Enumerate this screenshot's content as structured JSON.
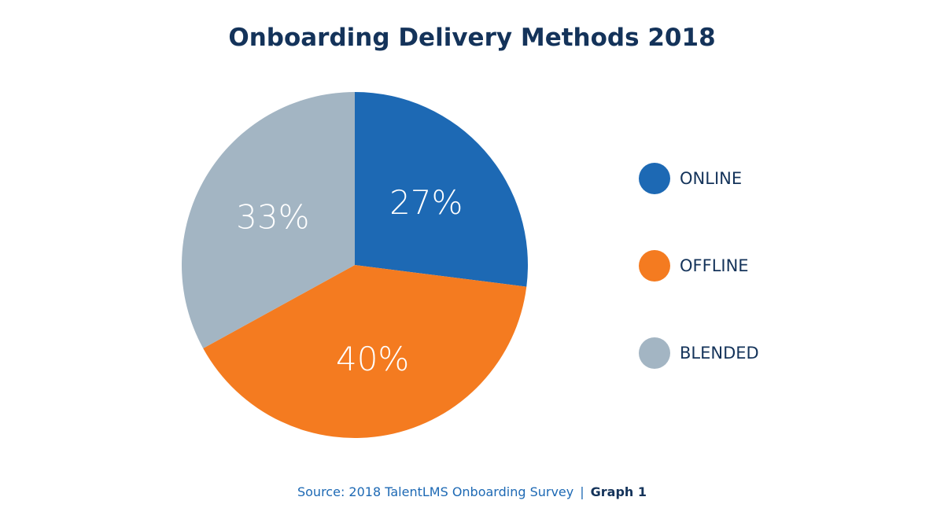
{
  "chart_data": {
    "type": "pie",
    "title": "Onboarding Delivery Methods 2018",
    "slices": [
      {
        "label": "ONLINE",
        "value": 27,
        "display": "27%",
        "color": "#1d69b4"
      },
      {
        "label": "OFFLINE",
        "value": 40,
        "display": "40%",
        "color": "#f47b20"
      },
      {
        "label": "BLENDED",
        "value": 33,
        "display": "33%",
        "color": "#a3b5c3"
      }
    ],
    "start": "top",
    "direction": "clockwise",
    "legend_position": "right"
  },
  "footer": {
    "source": "Source: 2018 TalentLMS Onboarding Survey",
    "separator": "|",
    "graph": "Graph 1"
  }
}
